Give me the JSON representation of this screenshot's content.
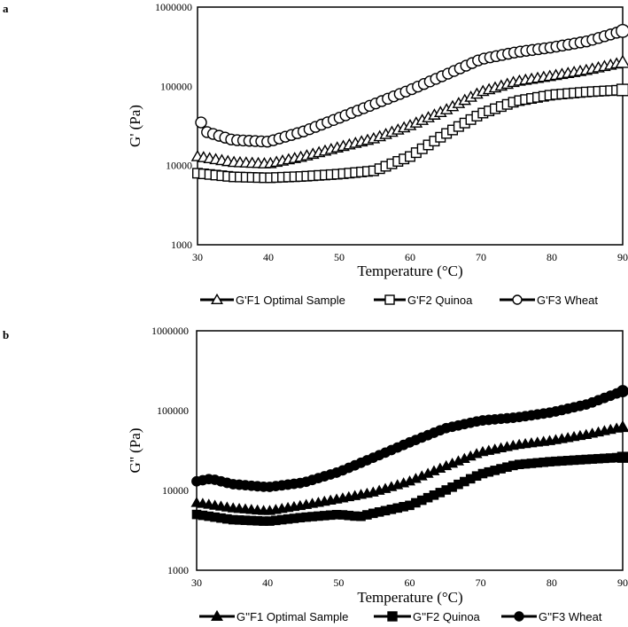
{
  "chart_data": [
    {
      "panel": "a",
      "type": "scatter",
      "yscale": "log",
      "xlabel": "Temperature (°C)",
      "ylabel": "G' (Pa)",
      "xlim": [
        30,
        90
      ],
      "ylim": [
        1000,
        1000000
      ],
      "xticks": [
        "30",
        "40",
        "50",
        "60",
        "70",
        "80",
        "90"
      ],
      "yticks": [
        "1000",
        "10000",
        "100000",
        "1000000"
      ],
      "legend_position": "bottom",
      "series": [
        {
          "name": "G'F1 Optimal Sample",
          "marker": "triangle",
          "fill": "#ffffff",
          "x": [
            30,
            35,
            40,
            45,
            50,
            55,
            60,
            65,
            70,
            75,
            80,
            85,
            90
          ],
          "y": [
            13000,
            11000,
            10500,
            13000,
            17000,
            22000,
            32000,
            50000,
            85000,
            115000,
            135000,
            160000,
            200000
          ]
        },
        {
          "name": "G'F2 Quinoa",
          "marker": "square",
          "fill": "#ffffff",
          "x": [
            30,
            35,
            40,
            45,
            50,
            55,
            60,
            65,
            70,
            75,
            80,
            85,
            90
          ],
          "y": [
            8000,
            7200,
            7000,
            7300,
            7800,
            8600,
            13000,
            25000,
            45000,
            65000,
            78000,
            85000,
            90000
          ]
        },
        {
          "name": "G'F3 Wheat",
          "marker": "circle",
          "fill": "#ffffff",
          "x": [
            30.5,
            31,
            35,
            40,
            45,
            50,
            55,
            60,
            65,
            70,
            75,
            80,
            85,
            90
          ],
          "y": [
            35000,
            27000,
            21000,
            20000,
            27000,
            40000,
            60000,
            90000,
            140000,
            220000,
            270000,
            310000,
            370000,
            500000
          ]
        }
      ]
    },
    {
      "panel": "b",
      "type": "scatter",
      "yscale": "log",
      "xlabel": "Temperature (°C)",
      "ylabel": "G'' (Pa)",
      "xlim": [
        30,
        90
      ],
      "ylim": [
        1000,
        1000000
      ],
      "xticks": [
        "30",
        "40",
        "50",
        "60",
        "70",
        "80",
        "90"
      ],
      "yticks": [
        "1000",
        "10000",
        "100000",
        "1000000"
      ],
      "legend_position": "bottom",
      "series": [
        {
          "name": "G''F1 Optimal Sample",
          "marker": "triangle",
          "fill": "#000000",
          "x": [
            30,
            35,
            40,
            45,
            50,
            55,
            60,
            65,
            70,
            75,
            80,
            85,
            90
          ],
          "y": [
            7000,
            6000,
            5500,
            6500,
            7800,
            9500,
            13000,
            20000,
            30000,
            37000,
            42000,
            50000,
            62000
          ]
        },
        {
          "name": "G''F2 Quinoa",
          "marker": "square",
          "fill": "#000000",
          "x": [
            30,
            35,
            40,
            45,
            50,
            53,
            55,
            60,
            65,
            70,
            75,
            80,
            85,
            90
          ],
          "y": [
            5000,
            4300,
            4100,
            4600,
            5000,
            4700,
            5200,
            6500,
            10000,
            16000,
            21000,
            23000,
            24500,
            26000
          ]
        },
        {
          "name": "G''F3 Wheat",
          "marker": "circle",
          "fill": "#000000",
          "x": [
            30,
            32,
            35,
            40,
            45,
            50,
            55,
            60,
            65,
            70,
            75,
            80,
            85,
            90
          ],
          "y": [
            13000,
            14000,
            12000,
            11000,
            12500,
            17000,
            26000,
            40000,
            60000,
            75000,
            82000,
            95000,
            120000,
            175000
          ]
        }
      ]
    }
  ]
}
